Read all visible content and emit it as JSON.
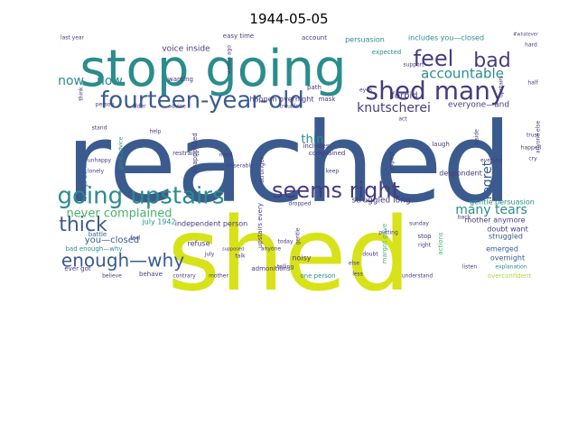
{
  "title": "1944-05-05",
  "palette": {
    "teal": "#2b8c8c",
    "navy": "#3b5b8f",
    "yellow": "#d8e219",
    "green": "#49b46c",
    "purple": "#473a7e",
    "lime": "#a8d93f"
  },
  "words": [
    {
      "text": "reached",
      "size": 122,
      "color": "navy"
    },
    {
      "text": "shed",
      "size": 112,
      "color": "yellow"
    },
    {
      "text": "stop going",
      "size": 56,
      "color": "teal"
    },
    {
      "text": "shed many",
      "size": 28,
      "color": "purple"
    },
    {
      "text": "fourteen-year-old",
      "size": 26,
      "color": "navy"
    },
    {
      "text": "going upstairs",
      "size": 26,
      "color": "teal"
    },
    {
      "text": "seems right",
      "size": 24,
      "color": "purple"
    },
    {
      "text": "feel",
      "size": 24,
      "color": "purple"
    },
    {
      "text": "bad",
      "size": 22,
      "color": "purple"
    },
    {
      "text": "thick",
      "size": 22,
      "color": "navy"
    },
    {
      "text": "enough—why",
      "size": 20,
      "color": "navy"
    },
    {
      "text": "accountable",
      "size": 15,
      "color": "teal"
    },
    {
      "text": "knutscherei",
      "size": 14,
      "color": "purple"
    },
    {
      "text": "many tears",
      "size": 14,
      "color": "teal"
    },
    {
      "text": "now…now",
      "size": 14,
      "color": "teal"
    },
    {
      "text": "regret",
      "size": 14,
      "color": "navy"
    },
    {
      "text": "never complained",
      "size": 13,
      "color": "green"
    },
    {
      "text": "thin",
      "size": 13,
      "color": "teal"
    },
    {
      "text": "you—closed",
      "size": 10,
      "color": "navy"
    },
    {
      "text": "forbid",
      "size": 10,
      "color": "purple"
    },
    {
      "text": "everyone—and",
      "size": 9,
      "color": "purple"
    },
    {
      "text": "voice inside",
      "size": 9,
      "color": "purple"
    },
    {
      "text": "persuasion",
      "size": 8,
      "color": "teal"
    },
    {
      "text": "includes you—closed",
      "size": 8,
      "color": "teal"
    },
    {
      "text": "happen overnight",
      "size": 8,
      "color": "purple"
    },
    {
      "text": "independent person",
      "size": 8,
      "color": "purple"
    },
    {
      "text": "gentle persuasion",
      "size": 8,
      "color": "teal"
    },
    {
      "text": "struggled long",
      "size": 9,
      "color": "purple"
    },
    {
      "text": "mother anymore",
      "size": 8,
      "color": "purple"
    },
    {
      "text": "doubt want",
      "size": 8,
      "color": "purple"
    },
    {
      "text": "emerged",
      "size": 8,
      "color": "navy"
    },
    {
      "text": "struggled",
      "size": 8,
      "color": "navy"
    },
    {
      "text": "overnight",
      "size": 8,
      "color": "navy"
    },
    {
      "text": "july 1942",
      "size": 8,
      "color": "teal"
    },
    {
      "text": "refuse",
      "size": 8,
      "color": "purple"
    },
    {
      "text": "bad enough—why",
      "size": 7,
      "color": "teal"
    },
    {
      "text": "noisy",
      "size": 8,
      "color": "purple"
    },
    {
      "text": "admonitions",
      "size": 7,
      "color": "purple"
    },
    {
      "text": "one person",
      "size": 7,
      "color": "teal"
    },
    {
      "text": "overconfident",
      "size": 7,
      "color": "lime"
    },
    {
      "text": "despondent",
      "size": 8,
      "color": "purple"
    },
    {
      "text": "complained",
      "size": 7,
      "color": "purple"
    },
    {
      "text": "includes",
      "size": 7,
      "color": "purple"
    },
    {
      "text": "restraint",
      "size": 7,
      "color": "purple"
    },
    {
      "text": "stronger",
      "size": 7,
      "color": "purple"
    },
    {
      "text": "laugh",
      "size": 7,
      "color": "purple"
    },
    {
      "text": "expected",
      "size": 7,
      "color": "teal"
    },
    {
      "text": "account",
      "size": 7,
      "color": "purple"
    },
    {
      "text": "easy time",
      "size": 7,
      "color": "purple"
    },
    {
      "text": "wanting",
      "size": 7,
      "color": "purple"
    },
    {
      "text": "mask",
      "size": 7,
      "color": "purple"
    },
    {
      "text": "path",
      "size": 7,
      "color": "purple"
    },
    {
      "text": "battle",
      "size": 7,
      "color": "navy"
    },
    {
      "text": "behave",
      "size": 7,
      "color": "purple"
    },
    {
      "text": "believe",
      "size": 6,
      "color": "purple"
    },
    {
      "text": "ever got",
      "size": 7,
      "color": "purple"
    },
    {
      "text": "things behind",
      "size": 7,
      "color": "navy"
    },
    {
      "text": "good advice",
      "size": 6,
      "color": "teal"
    },
    {
      "text": "weeks ago",
      "size": 6,
      "color": "purple"
    },
    {
      "text": "disappointed",
      "size": 7,
      "color": "purple"
    },
    {
      "text": "upstairs every",
      "size": 7,
      "color": "purple"
    },
    {
      "text": "margot gave",
      "size": 7,
      "color": "green"
    },
    {
      "text": "actions",
      "size": 7,
      "color": "green"
    },
    {
      "text": "stop",
      "size": 7,
      "color": "purple"
    },
    {
      "text": "right",
      "size": 6,
      "color": "purple"
    },
    {
      "text": "gentle",
      "size": 6,
      "color": "purple"
    },
    {
      "text": "dropped",
      "size": 6,
      "color": "purple"
    },
    {
      "text": "last year",
      "size": 6,
      "color": "purple"
    },
    {
      "text": "lonely",
      "size": 6,
      "color": "purple"
    },
    {
      "text": "unhappy",
      "size": 6,
      "color": "purple"
    },
    {
      "text": "help",
      "size": 6,
      "color": "purple"
    },
    {
      "text": "need",
      "size": 6,
      "color": "purple"
    },
    {
      "text": "anyone",
      "size": 6,
      "color": "purple"
    },
    {
      "text": "telling",
      "size": 6,
      "color": "purple"
    },
    {
      "text": "today",
      "size": 6,
      "color": "purple"
    },
    {
      "text": "mother",
      "size": 6,
      "color": "purple"
    },
    {
      "text": "contrary",
      "size": 6,
      "color": "purple"
    },
    {
      "text": "understand",
      "size": 6,
      "color": "purple"
    },
    {
      "text": "listen",
      "size": 6,
      "color": "purple"
    },
    {
      "text": "trust",
      "size": 6,
      "color": "purple"
    },
    {
      "text": "happen",
      "size": 6,
      "color": "purple"
    },
    {
      "text": "cry",
      "size": 6,
      "color": "purple"
    },
    {
      "text": "evening",
      "size": 6,
      "color": "purple"
    },
    {
      "text": "anyone else",
      "size": 6,
      "color": "purple"
    },
    {
      "text": "upstairs",
      "size": 6,
      "color": "purple"
    },
    {
      "text": "inside",
      "size": 6,
      "color": "purple"
    },
    {
      "text": "sunday",
      "size": 6,
      "color": "purple"
    },
    {
      "text": "explanation",
      "size": 6,
      "color": "teal"
    },
    {
      "text": "feel",
      "size": 6,
      "color": "purple"
    },
    {
      "text": "miserable",
      "size": 6,
      "color": "purple"
    },
    {
      "text": "putting",
      "size": 6,
      "color": "purple"
    },
    {
      "text": "support",
      "size": 6,
      "color": "purple"
    },
    {
      "text": "hard",
      "size": 6,
      "color": "purple"
    },
    {
      "text": "half",
      "size": 6,
      "color": "purple"
    },
    {
      "text": "advice",
      "size": 6,
      "color": "purple"
    },
    {
      "text": "older",
      "size": 6,
      "color": "purple"
    },
    {
      "text": "person",
      "size": 6,
      "color": "purple"
    },
    {
      "text": "troubles",
      "size": 6,
      "color": "purple"
    },
    {
      "text": "eyes",
      "size": 6,
      "color": "purple"
    },
    {
      "text": "else",
      "size": 6,
      "color": "purple"
    },
    {
      "text": "less",
      "size": 6,
      "color": "purple"
    },
    {
      "text": "#whatever",
      "size": 5,
      "color": "purple"
    },
    {
      "text": "stand",
      "size": 6,
      "color": "purple"
    },
    {
      "text": "think",
      "size": 6,
      "color": "purple"
    },
    {
      "text": "doubt",
      "size": 6,
      "color": "purple"
    },
    {
      "text": "keep",
      "size": 6,
      "color": "purple"
    },
    {
      "text": "expect",
      "size": 6,
      "color": "purple"
    },
    {
      "text": "act",
      "size": 6,
      "color": "purple"
    },
    {
      "text": "supposed",
      "size": 5,
      "color": "purple"
    },
    {
      "text": "talk",
      "size": 6,
      "color": "purple"
    },
    {
      "text": "july",
      "size": 6,
      "color": "purple"
    },
    {
      "text": "back",
      "size": 6,
      "color": "purple"
    }
  ]
}
